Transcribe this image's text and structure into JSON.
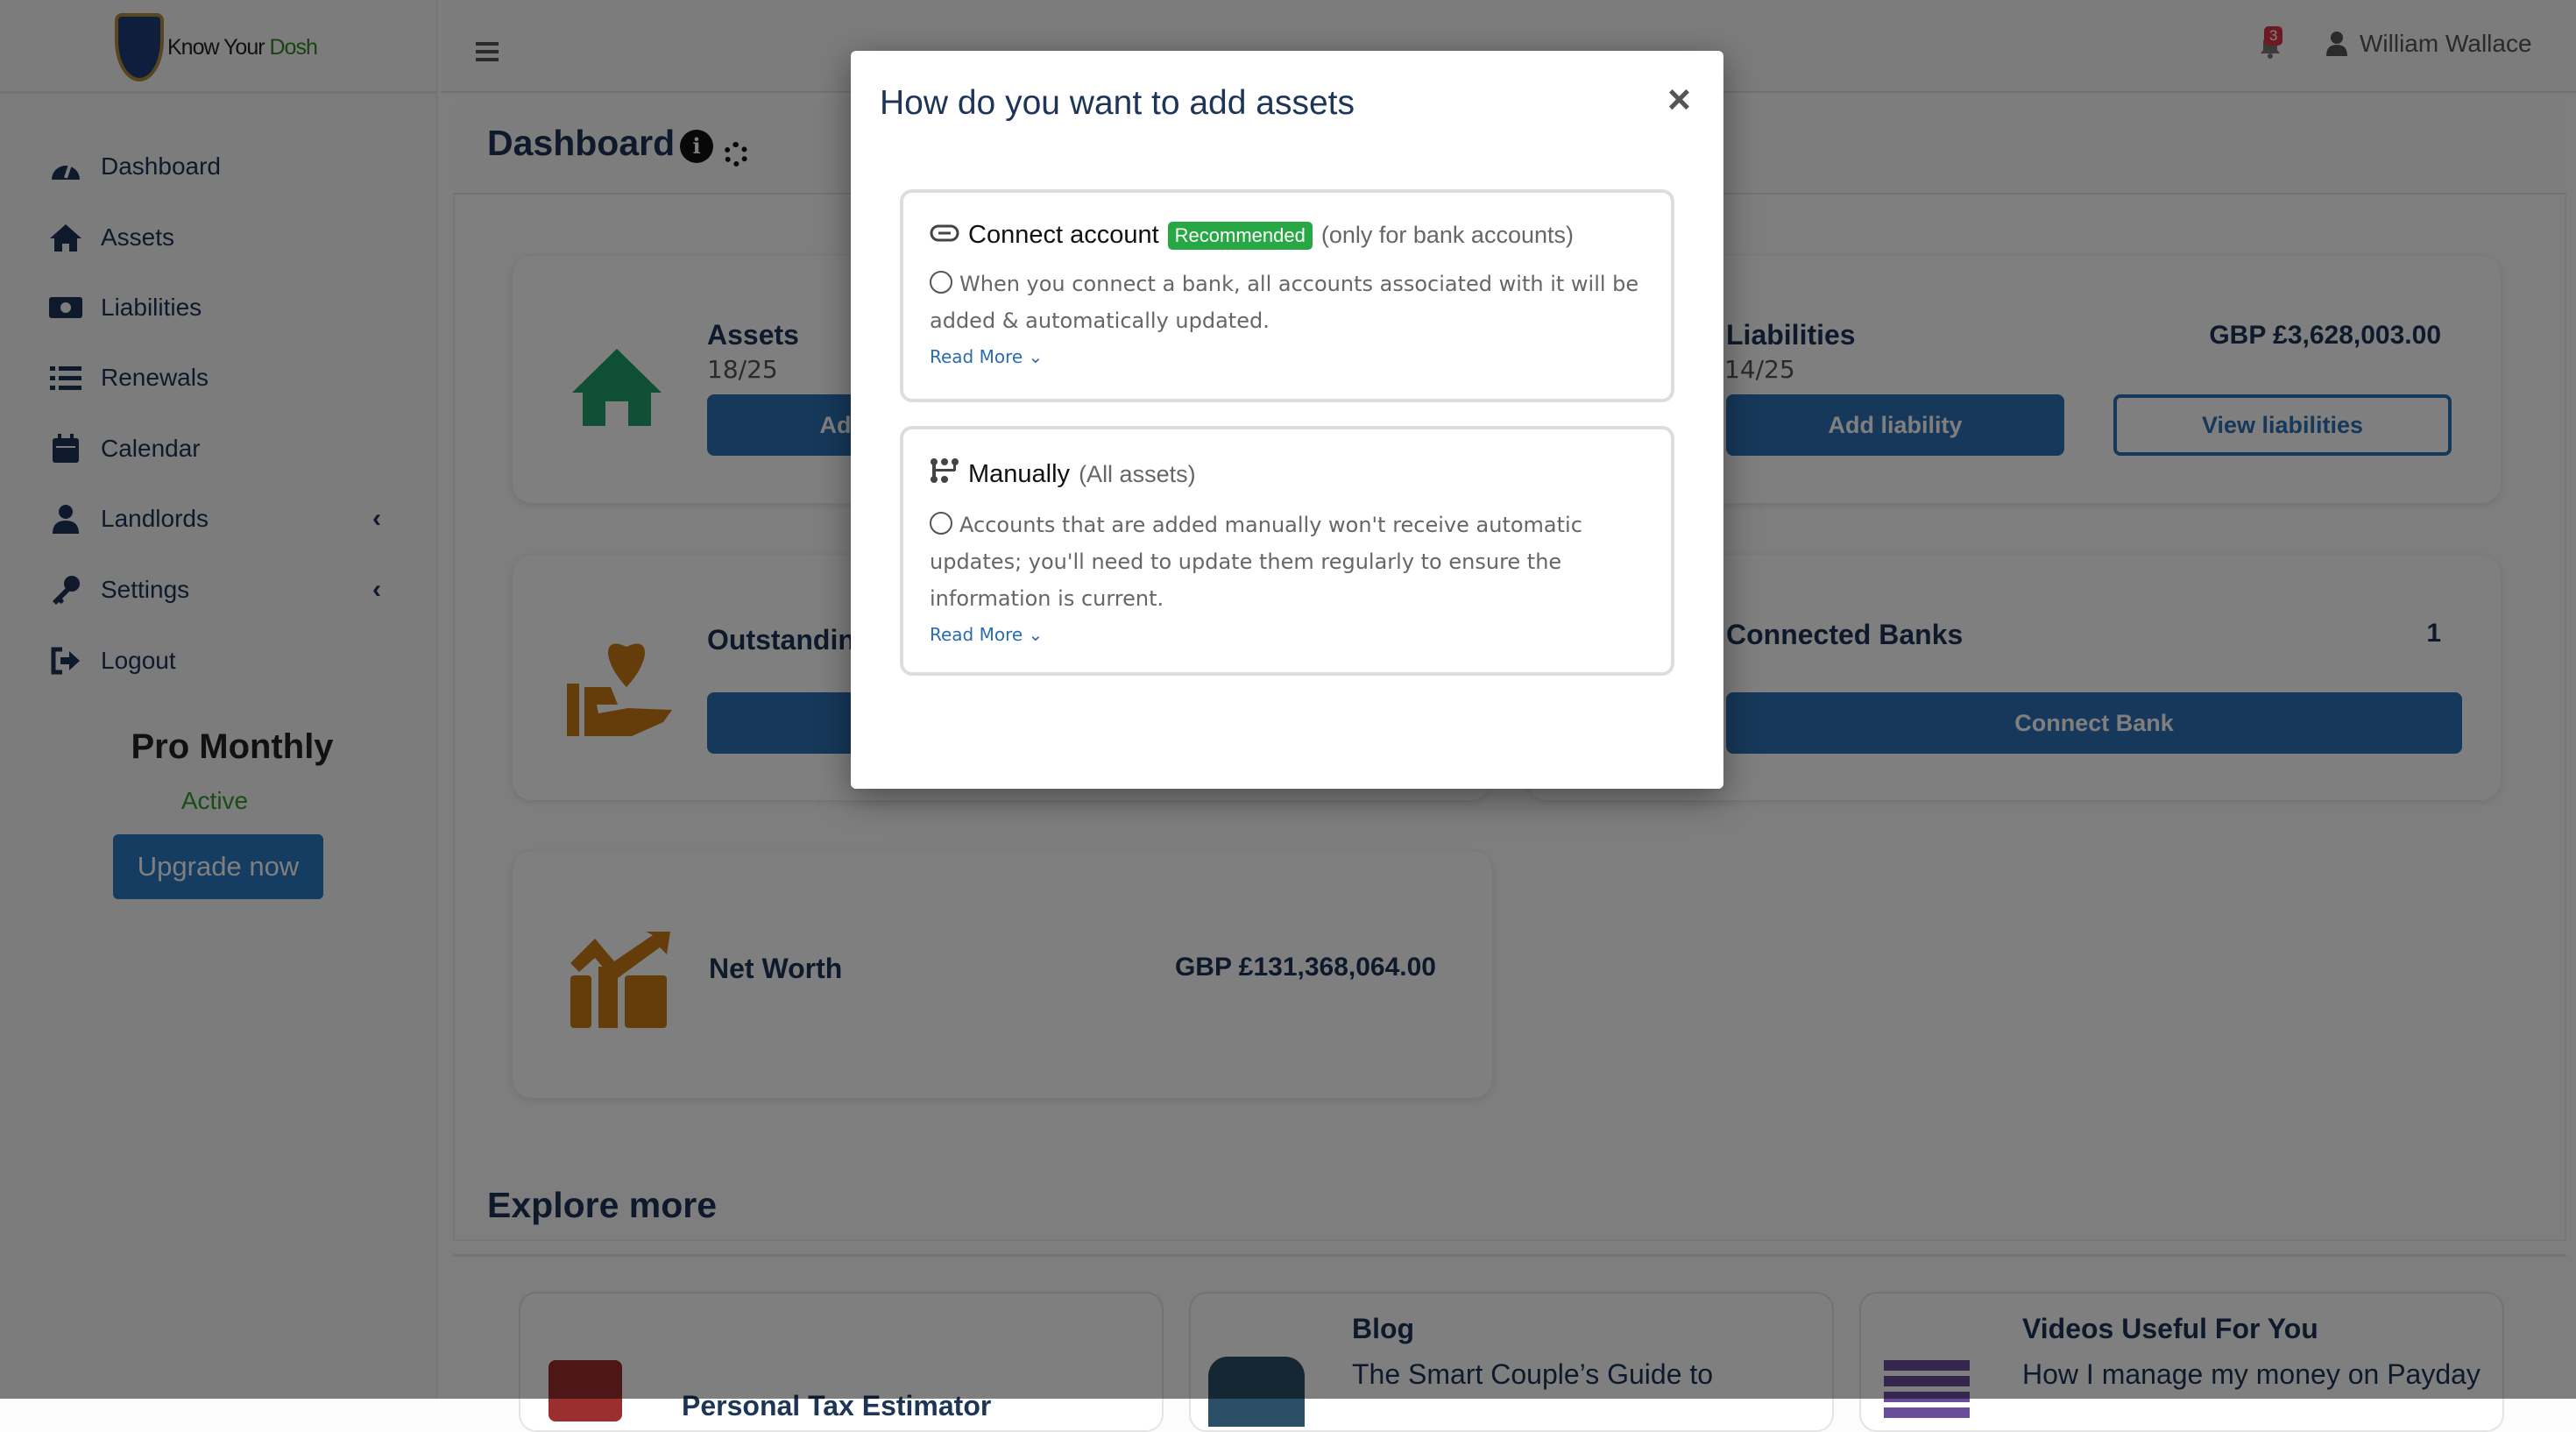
{
  "brand": {
    "part1": "Know Your ",
    "part2": "Dosh"
  },
  "sidebar": {
    "items": [
      {
        "label": "Dashboard",
        "icon": "tachometer-icon"
      },
      {
        "label": "Assets",
        "icon": "home-icon"
      },
      {
        "label": "Liabilities",
        "icon": "money-bill-icon"
      },
      {
        "label": "Renewals",
        "icon": "list-icon"
      },
      {
        "label": "Calendar",
        "icon": "calendar-icon"
      },
      {
        "label": "Landlords",
        "icon": "user-tie-icon",
        "chevron": "‹"
      },
      {
        "label": "Settings",
        "icon": "key-icon",
        "chevron": "‹"
      },
      {
        "label": "Logout",
        "icon": "sign-out-icon"
      }
    ],
    "plan": {
      "name": "Pro Monthly",
      "status": "Active",
      "upgrade": "Upgrade now"
    }
  },
  "header": {
    "notifications": "3",
    "user": "William Wallace"
  },
  "page": {
    "title": "Dashboard"
  },
  "cards": {
    "assets": {
      "title": "Assets",
      "count": "18/25",
      "add": "Add asset"
    },
    "liabilities": {
      "title": "Liabilities",
      "count": "14/25",
      "value": "GBP £3,628,003.00",
      "add": "Add liability",
      "view": "View liabilities"
    },
    "outstanding": {
      "title": "Outstanding"
    },
    "banks": {
      "title": "Connected Banks",
      "value": "1",
      "button": "Connect Bank"
    },
    "networth": {
      "title": "Net Worth",
      "value": "GBP £131,368,064.00"
    }
  },
  "explore": {
    "title": "Explore more",
    "cards": [
      {
        "title": "",
        "desc": "Personal Tax Estimator"
      },
      {
        "title": "Blog",
        "desc": "The Smart Couple’s Guide to"
      },
      {
        "title": "Videos Useful For You",
        "desc": "How I manage my money on Payday"
      }
    ]
  },
  "colors": {
    "accent": "#2c70b5",
    "green": "#28a745",
    "assetIcon": "#1f9e6a",
    "orangeIcon": "#c97a14"
  },
  "modal": {
    "title": "How do you want to add assets",
    "close": "×",
    "options": [
      {
        "title": "Connect account",
        "badge": "Recommended",
        "note": "(only for bank accounts)",
        "desc": "When you connect a bank, all accounts associated with it will be added & automatically updated.",
        "read_more": "Read More ⌄"
      },
      {
        "title": "Manually",
        "note": "(All assets)",
        "desc": "Accounts that are added manually won't receive automatic updates; you'll need to update them regularly to ensure the information is current.",
        "read_more": "Read More ⌄"
      }
    ]
  }
}
